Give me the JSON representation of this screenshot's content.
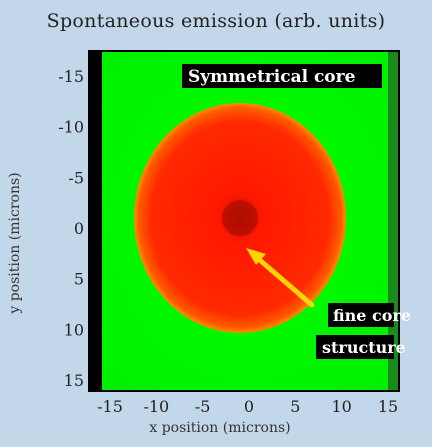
{
  "chart_data": {
    "type": "heatmap",
    "title": "Spontaneous emission (arb. units)",
    "xlabel": "x position (microns)",
    "ylabel": "y position (microns)",
    "xticks": [
      "-15",
      "-10",
      "-5",
      "0",
      "5",
      "10",
      "15"
    ],
    "yticks": [
      "-15",
      "-10",
      "-5",
      "0",
      "5",
      "10",
      "15"
    ],
    "xlim": [
      -15,
      15
    ],
    "ylim": [
      -15,
      15
    ],
    "colors": {
      "background": "#c3d7ea",
      "field": "#00ff00",
      "disk": "#ff2200",
      "disk_edge": "#ff6a00",
      "core": "#b80a00",
      "arrow": "#ffd400"
    },
    "annotations": [
      {
        "text": "Symmetrical core"
      },
      {
        "text": "fine core"
      },
      {
        "text": "structure"
      }
    ]
  }
}
